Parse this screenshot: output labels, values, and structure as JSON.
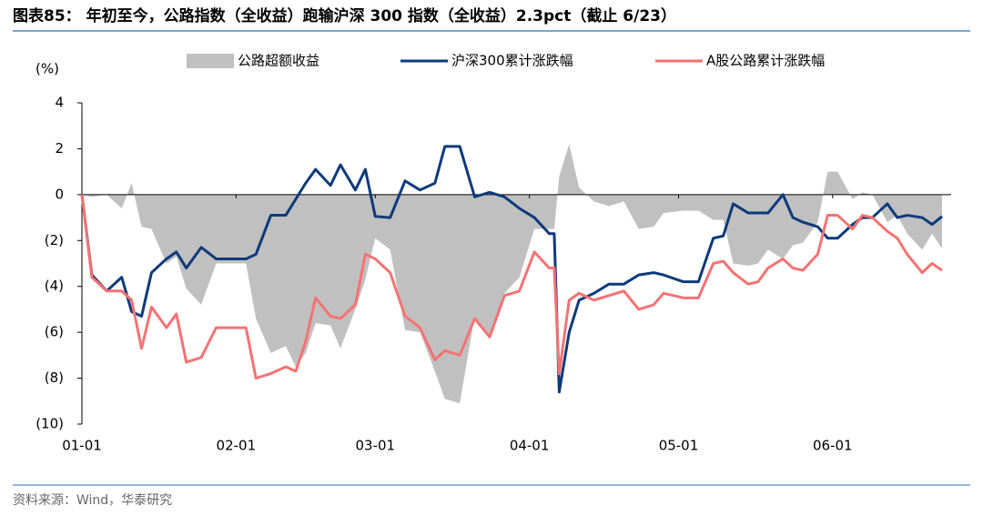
{
  "header": {
    "title": "图表85：  年初至今，公路指数（全收益）跑输沪深 300 指数（全收益）2.3pct（截止 6/23）"
  },
  "chart_data": {
    "type": "line",
    "y_label": "(%)",
    "x": [
      "01-01",
      "01-03",
      "01-06",
      "01-09",
      "01-11",
      "01-13",
      "01-15",
      "01-18",
      "01-20",
      "01-22",
      "01-25",
      "01-28",
      "02-03",
      "02-05",
      "02-08",
      "02-11",
      "02-13",
      "02-15",
      "02-17",
      "02-20",
      "02-22",
      "02-25",
      "02-27",
      "03-01",
      "03-04",
      "03-07",
      "03-10",
      "03-13",
      "03-15",
      "03-18",
      "03-21",
      "03-24",
      "03-27",
      "03-30",
      "04-02",
      "04-05",
      "04-06",
      "04-07",
      "04-09",
      "04-11",
      "04-14",
      "04-17",
      "04-20",
      "04-23",
      "04-26",
      "04-28",
      "05-02",
      "05-05",
      "05-08",
      "05-10",
      "05-12",
      "05-15",
      "05-17",
      "05-19",
      "05-22",
      "05-24",
      "05-26",
      "05-29",
      "05-31",
      "06-02",
      "06-05",
      "06-07",
      "06-09",
      "06-12",
      "06-14",
      "06-16",
      "06-19",
      "06-21",
      "06-23"
    ],
    "xticks": [
      "01-01",
      "02-01",
      "03-01",
      "04-01",
      "05-01",
      "06-01"
    ],
    "ylim": [
      -10,
      4
    ],
    "yticks": [
      {
        "value": -10,
        "label": "(10)"
      },
      {
        "value": -8,
        "label": "(8)"
      },
      {
        "value": -6,
        "label": "(6)"
      },
      {
        "value": -4,
        "label": "(4)"
      },
      {
        "value": -2,
        "label": "(2)"
      },
      0,
      2,
      4
    ],
    "legend": "top",
    "series": [
      {
        "name": "公路超额收益",
        "type": "area",
        "color": "#c0c0c0",
        "values": [
          0,
          -0.1,
          0,
          -0.6,
          0.5,
          -1.4,
          -1.5,
          -3.0,
          -2.7,
          -4.1,
          -4.8,
          -3.0,
          -3.0,
          -5.4,
          -6.9,
          -6.6,
          -7.5,
          -6.9,
          -5.6,
          -5.7,
          -6.7,
          -5.0,
          -3.7,
          -1.9,
          -2.4,
          -5.9,
          -6.0,
          -7.7,
          -8.9,
          -9.1,
          -5.3,
          -6.3,
          -4.3,
          -3.6,
          -1.5,
          -1.5,
          -1.5,
          0.8,
          2.2,
          0.3,
          -0.3,
          -0.5,
          -0.3,
          -1.5,
          -1.4,
          -0.8,
          -0.7,
          -0.7,
          -1.1,
          -1.1,
          -3.0,
          -3.1,
          -3.0,
          -2.4,
          -2.8,
          -2.2,
          -2.1,
          -1.2,
          1.0,
          1.0,
          -0.2,
          0.1,
          0.0,
          -1.2,
          -0.9,
          -1.7,
          -2.4,
          -1.7,
          -2.35
        ]
      },
      {
        "name": "沪深300累计涨跌幅",
        "type": "line",
        "color": "#0e3a7a",
        "values": [
          0,
          -3.5,
          -4.2,
          -3.6,
          -5.1,
          -5.3,
          -3.4,
          -2.8,
          -2.5,
          -3.2,
          -2.3,
          -2.8,
          -2.8,
          -2.6,
          -0.9,
          -0.9,
          -0.2,
          0.5,
          1.1,
          0.4,
          1.3,
          0.2,
          1.1,
          -0.95,
          -1.0,
          0.6,
          0.2,
          0.5,
          2.1,
          2.1,
          -0.1,
          0.1,
          -0.1,
          -0.6,
          -1.0,
          -1.7,
          -1.7,
          -8.6,
          -6.0,
          -4.6,
          -4.3,
          -3.9,
          -3.9,
          -3.5,
          -3.4,
          -3.5,
          -3.8,
          -3.8,
          -1.9,
          -1.8,
          -0.4,
          -0.8,
          -0.8,
          -0.8,
          0.0,
          -1.0,
          -1.2,
          -1.4,
          -1.9,
          -1.9,
          -1.3,
          -1.0,
          -1.0,
          -0.4,
          -1.0,
          -0.9,
          -1.0,
          -1.3,
          -0.95
        ]
      },
      {
        "name": "A股公路累计涨跌幅",
        "type": "line",
        "color": "#f47373",
        "values": [
          0,
          -3.6,
          -4.2,
          -4.2,
          -4.6,
          -6.7,
          -4.9,
          -5.8,
          -5.2,
          -7.3,
          -7.1,
          -5.8,
          -5.8,
          -8.0,
          -7.8,
          -7.5,
          -7.7,
          -6.4,
          -4.5,
          -5.3,
          -5.4,
          -4.8,
          -2.6,
          -2.8,
          -3.4,
          -5.3,
          -5.8,
          -7.2,
          -6.8,
          -7.0,
          -5.4,
          -6.2,
          -4.4,
          -4.2,
          -2.5,
          -3.2,
          -3.2,
          -7.8,
          -4.6,
          -4.3,
          -4.6,
          -4.4,
          -4.2,
          -5.0,
          -4.8,
          -4.3,
          -4.5,
          -4.5,
          -3.0,
          -2.9,
          -3.4,
          -3.9,
          -3.8,
          -3.2,
          -2.8,
          -3.2,
          -3.3,
          -2.6,
          -0.9,
          -0.9,
          -1.5,
          -0.9,
          -1.0,
          -1.6,
          -1.9,
          -2.6,
          -3.4,
          -3.0,
          -3.3
        ]
      }
    ]
  },
  "footer": {
    "source": "资料来源：Wind，华泰研究"
  }
}
